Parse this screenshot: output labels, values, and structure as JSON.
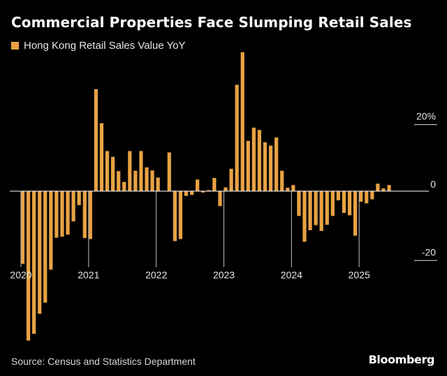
{
  "header": {
    "title": "Commercial Properties Face Slumping Retail Sales"
  },
  "legend": {
    "label": "Hong Kong Retail Sales Value YoY",
    "color": "#E8A244"
  },
  "footer": {
    "source": "Source: Census and Statistics Department",
    "brand": "Bloomberg"
  },
  "chart_data": {
    "type": "bar",
    "title": "Commercial Properties Face Slumping Retail Sales",
    "series": [
      {
        "name": "Hong Kong Retail Sales Value YoY",
        "color": "#E8A244",
        "x": [
          "2020-01",
          "2020-02",
          "2020-03",
          "2020-04",
          "2020-05",
          "2020-06",
          "2020-07",
          "2020-08",
          "2020-09",
          "2020-10",
          "2020-11",
          "2020-12",
          "2021-01",
          "2021-02",
          "2021-03",
          "2021-04",
          "2021-05",
          "2021-06",
          "2021-07",
          "2021-08",
          "2021-09",
          "2021-10",
          "2021-11",
          "2021-12",
          "2022-01",
          "2022-02",
          "2022-03",
          "2022-04",
          "2022-05",
          "2022-06",
          "2022-07",
          "2022-08",
          "2022-09",
          "2022-10",
          "2022-11",
          "2022-12",
          "2023-01",
          "2023-02",
          "2023-03",
          "2023-04",
          "2023-05",
          "2023-06",
          "2023-07",
          "2023-08",
          "2023-09",
          "2023-10",
          "2023-11",
          "2023-12",
          "2024-01",
          "2024-02",
          "2024-03",
          "2024-04",
          "2024-05",
          "2024-06",
          "2024-07",
          "2024-08",
          "2024-09",
          "2024-10",
          "2024-11",
          "2024-12",
          "2025-01",
          "2025-02",
          "2025-03",
          "2025-04",
          "2025-05",
          "2025-06",
          "2025-07"
        ],
        "values": [
          -21.4,
          -44.0,
          -42.0,
          -36.1,
          -32.8,
          -23.1,
          -13.7,
          -13.4,
          -12.8,
          -8.9,
          -4.1,
          -13.8,
          -14.1,
          30.0,
          20.0,
          11.8,
          10.1,
          5.9,
          2.7,
          11.8,
          6.0,
          11.8,
          7.0,
          6.1,
          4.0,
          0.1,
          11.4,
          -14.7,
          -14.1,
          -1.4,
          -1.1,
          3.4,
          -0.4,
          0.3,
          3.9,
          -4.4,
          1.1,
          6.6,
          31.3,
          40.9,
          14.8,
          18.7,
          18.0,
          14.4,
          13.4,
          15.8,
          6.0,
          1.0,
          1.8,
          -7.3,
          -14.9,
          -11.5,
          -10.0,
          -11.7,
          -9.9,
          -7.3,
          -2.7,
          -6.4,
          -7.1,
          -13.1,
          -3.1,
          -3.6,
          -2.4,
          2.2,
          0.8,
          1.8,
          0.0
        ]
      }
    ],
    "x_tick_labels": [
      "2020",
      "2021",
      "2022",
      "2023",
      "2024",
      "2025"
    ],
    "y_ticks": [
      {
        "value": 20,
        "label": "20%"
      },
      {
        "value": 0,
        "label": "0"
      },
      {
        "value": -20,
        "label": "-20"
      }
    ],
    "ylim": [
      -45,
      42
    ],
    "xlabel": "",
    "ylabel": "",
    "grid": false,
    "legend_position": "top-left"
  }
}
